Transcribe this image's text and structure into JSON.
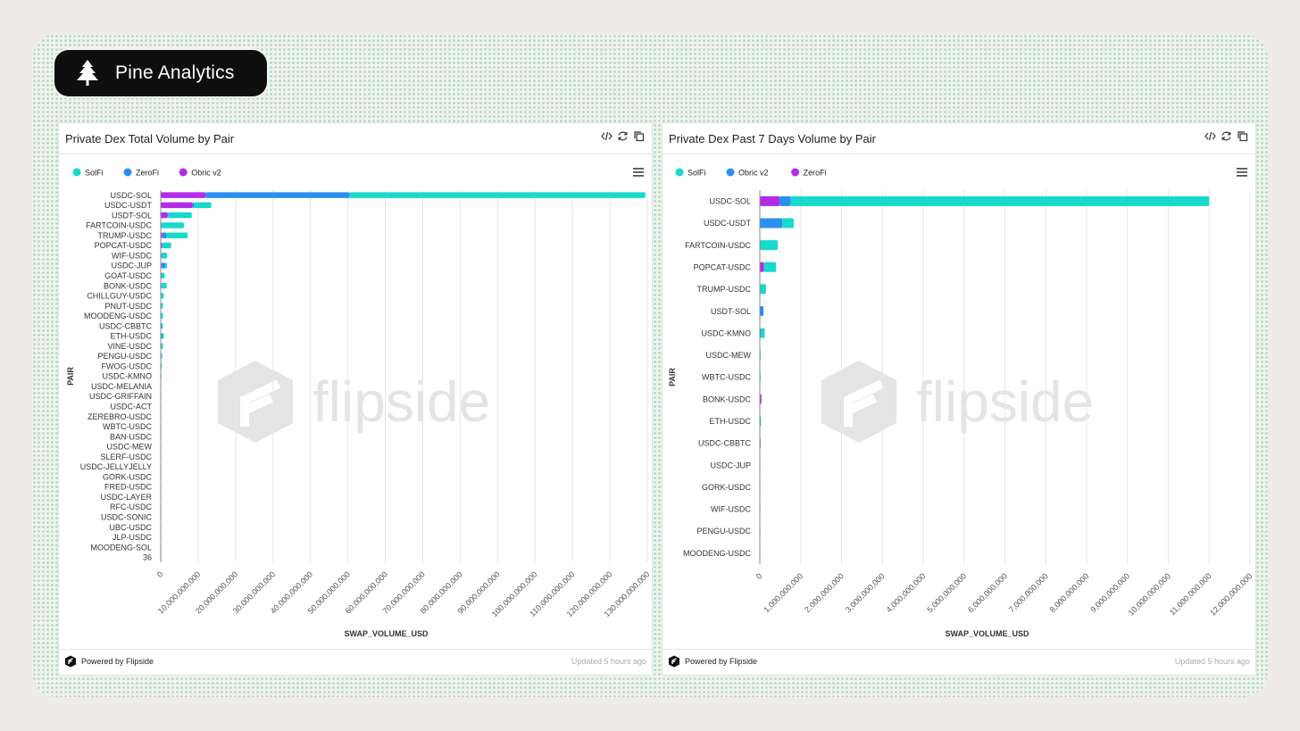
{
  "brand": {
    "name": "Pine Analytics"
  },
  "left_panel": {
    "title": "Private Dex Total Volume by Pair",
    "footer": {
      "powered": "Powered by Flipside",
      "updated": "Updated 5 hours ago"
    }
  },
  "right_panel": {
    "title": "Private Dex Past 7 Days Volume by Pair",
    "footer": {
      "powered": "Powered by Flipside",
      "updated": "Updated 5 hours ago"
    }
  },
  "watermark": "flipside",
  "chart_data": [
    {
      "type": "bar",
      "orientation": "horizontal",
      "stacked": true,
      "title": "Private Dex Total Volume by Pair",
      "xlabel": "SWAP_VOLUME_USD",
      "ylabel": "PAIR",
      "xlim": [
        0,
        130000000000
      ],
      "xticks": [
        0,
        10000000000,
        20000000000,
        30000000000,
        40000000000,
        50000000000,
        60000000000,
        70000000000,
        80000000000,
        90000000000,
        100000000000,
        110000000000,
        120000000000,
        130000000000
      ],
      "xtick_labels": [
        "0",
        "10,000,000,000",
        "20,000,000,000",
        "30,000,000,000",
        "40,000,000,000",
        "50,000,000,000",
        "60,000,000,000",
        "70,000,000,000",
        "80,000,000,000",
        "90,000,000,000",
        "100,000,000,000",
        "110,000,000,000",
        "120,000,000,000",
        "130,000,000,000"
      ],
      "grid": true,
      "legend": "top-left",
      "categories": [
        "USDC-SOL",
        "USDC-USDT",
        "USDT-SOL",
        "FARTCOIN-USDC",
        "TRUMP-USDC",
        "POPCAT-USDC",
        "WIF-USDC",
        "USDC-JUP",
        "GOAT-USDC",
        "BONK-USDC",
        "CHILLGUY-USDC",
        "PNUT-USDC",
        "MOODENG-USDC",
        "USDC-CBBTC",
        "ETH-USDC",
        "VINE-USDC",
        "PENGU-USDC",
        "FWOG-USDC",
        "USDC-KMNO",
        "USDC-MELANIA",
        "USDC-GRIFFAIN",
        "USDC-ACT",
        "ZEREBRO-USDC",
        "WBTC-USDC",
        "BAN-USDC",
        "USDC-MEW",
        "SLERF-USDC",
        "USDC-JELLYJELLY",
        "GORK-USDC",
        "FRED-USDC",
        "USDC-LAYER",
        "RFC-USDC",
        "USDC-SONIC",
        "UBC-USDC",
        "JLP-USDC",
        "MOODENG-SOL",
        "36"
      ],
      "series": [
        {
          "name": "Obric v2",
          "color": "#b32ce8",
          "values": [
            12000000000,
            8500000000,
            1800000000,
            0,
            400000000,
            300000000,
            100000000,
            200000000,
            50000000,
            100000000,
            20000000,
            0,
            0,
            0,
            50000000,
            0,
            0,
            0,
            0,
            0,
            0,
            0,
            0,
            0,
            0,
            0,
            0,
            0,
            0,
            0,
            0,
            0,
            0,
            0,
            0,
            0,
            0
          ]
        },
        {
          "name": "ZeroFi",
          "color": "#2b8ff0",
          "values": [
            38500000000,
            500000000,
            200000000,
            300000000,
            1200000000,
            200000000,
            300000000,
            1000000000,
            200000000,
            200000000,
            100000000,
            0,
            0,
            300000000,
            300000000,
            0,
            0,
            0,
            0,
            0,
            0,
            0,
            0,
            0,
            0,
            0,
            0,
            0,
            0,
            0,
            0,
            0,
            0,
            0,
            0,
            0,
            0
          ]
        },
        {
          "name": "SolFi",
          "color": "#17d9cc",
          "values": [
            79000000000,
            4500000000,
            6300000000,
            5900000000,
            5600000000,
            2300000000,
            1300000000,
            500000000,
            800000000,
            1300000000,
            700000000,
            600000000,
            600000000,
            300000000,
            500000000,
            600000000,
            400000000,
            300000000,
            200000000,
            100000000,
            100000000,
            100000000,
            50000000,
            50000000,
            50000000,
            50000000,
            50000000,
            30000000,
            30000000,
            30000000,
            30000000,
            20000000,
            20000000,
            20000000,
            20000000,
            20000000,
            10000000
          ]
        }
      ]
    },
    {
      "type": "bar",
      "orientation": "horizontal",
      "stacked": true,
      "title": "Private Dex Past 7 Days Volume by Pair",
      "xlabel": "SWAP_VOLUME_USD",
      "ylabel": "PAIR",
      "xlim": [
        0,
        12000000000
      ],
      "xticks": [
        0,
        1000000000,
        2000000000,
        3000000000,
        4000000000,
        5000000000,
        6000000000,
        7000000000,
        8000000000,
        9000000000,
        10000000000,
        11000000000,
        12000000000
      ],
      "xtick_labels": [
        "0",
        "1,000,000,000",
        "2,000,000,000",
        "3,000,000,000",
        "4,000,000,000",
        "5,000,000,000",
        "6,000,000,000",
        "7,000,000,000",
        "8,000,000,000",
        "9,000,000,000",
        "10,000,000,000",
        "11,000,000,000",
        "12,000,000,000"
      ],
      "grid": true,
      "legend": "top-left",
      "categories": [
        "USDC-SOL",
        "USDC-USDT",
        "FARTCOIN-USDC",
        "POPCAT-USDC",
        "TRUMP-USDC",
        "USDT-SOL",
        "USDC-KMNO",
        "USDC-MEW",
        "WBTC-USDC",
        "BONK-USDC",
        "ETH-USDC",
        "USDC-CBBTC",
        "USDC-JUP",
        "GORK-USDC",
        "WIF-USDC",
        "PENGU-USDC",
        "MOODENG-USDC"
      ],
      "series": [
        {
          "name": "ZeroFi",
          "color": "#b32ce8",
          "values": [
            480000000,
            0,
            0,
            100000000,
            0,
            0,
            0,
            0,
            0,
            40000000,
            0,
            0,
            0,
            0,
            0,
            0,
            0
          ]
        },
        {
          "name": "Obric v2",
          "color": "#2b8ff0",
          "values": [
            280000000,
            550000000,
            0,
            0,
            0,
            90000000,
            30000000,
            0,
            0,
            0,
            0,
            20000000,
            0,
            0,
            0,
            0,
            0
          ]
        },
        {
          "name": "SolFi",
          "color": "#17d9cc",
          "values": [
            10240000000,
            280000000,
            440000000,
            300000000,
            150000000,
            0,
            90000000,
            20000000,
            20000000,
            0,
            30000000,
            0,
            10000000,
            10000000,
            10000000,
            10000000,
            10000000
          ]
        }
      ],
      "legend_order": [
        "SolFi",
        "Obric v2",
        "ZeroFi"
      ]
    }
  ]
}
